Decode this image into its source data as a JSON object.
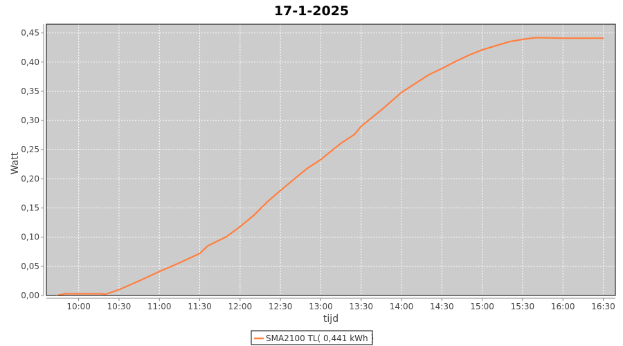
{
  "chart_data": {
    "type": "line",
    "title": "17-1-2025",
    "xlabel": "tijd",
    "ylabel": "Watt",
    "xlim": [
      "09:36",
      "16:39"
    ],
    "ylim": [
      0,
      0.465
    ],
    "x_ticks": [
      "10:00",
      "10:30",
      "11:00",
      "11:30",
      "12:00",
      "12:30",
      "13:00",
      "13:30",
      "14:00",
      "14:30",
      "15:00",
      "15:30",
      "16:00",
      "16:30"
    ],
    "y_ticks": [
      "0,00",
      "0,05",
      "0,10",
      "0,15",
      "0,20",
      "0,25",
      "0,30",
      "0,35",
      "0,40",
      "0,45"
    ],
    "grid": true,
    "legend_position": "bottom",
    "background": "#cccccc",
    "series": [
      {
        "name": "SMA2100 TL( 0,441 kWh )",
        "color": "#ff7f3f",
        "points": [
          [
            "09:44",
            0.0
          ],
          [
            "09:50",
            0.003
          ],
          [
            "10:17",
            0.003
          ],
          [
            "10:20",
            0.002
          ],
          [
            "10:30",
            0.01
          ],
          [
            "10:45",
            0.025
          ],
          [
            "11:00",
            0.041
          ],
          [
            "11:15",
            0.056
          ],
          [
            "11:30",
            0.072
          ],
          [
            "11:36",
            0.085
          ],
          [
            "11:50",
            0.101
          ],
          [
            "12:00",
            0.118
          ],
          [
            "12:10",
            0.137
          ],
          [
            "12:20",
            0.16
          ],
          [
            "12:30",
            0.18
          ],
          [
            "12:40",
            0.199
          ],
          [
            "12:50",
            0.218
          ],
          [
            "13:00",
            0.233
          ],
          [
            "13:15",
            0.261
          ],
          [
            "13:25",
            0.276
          ],
          [
            "13:30",
            0.29
          ],
          [
            "13:45",
            0.318
          ],
          [
            "14:00",
            0.348
          ],
          [
            "14:20",
            0.378
          ],
          [
            "14:30",
            0.389
          ],
          [
            "14:40",
            0.401
          ],
          [
            "14:50",
            0.412
          ],
          [
            "15:00",
            0.421
          ],
          [
            "15:20",
            0.435
          ],
          [
            "15:30",
            0.439
          ],
          [
            "15:40",
            0.442
          ],
          [
            "16:00",
            0.441
          ],
          [
            "16:30",
            0.441
          ]
        ]
      }
    ]
  }
}
